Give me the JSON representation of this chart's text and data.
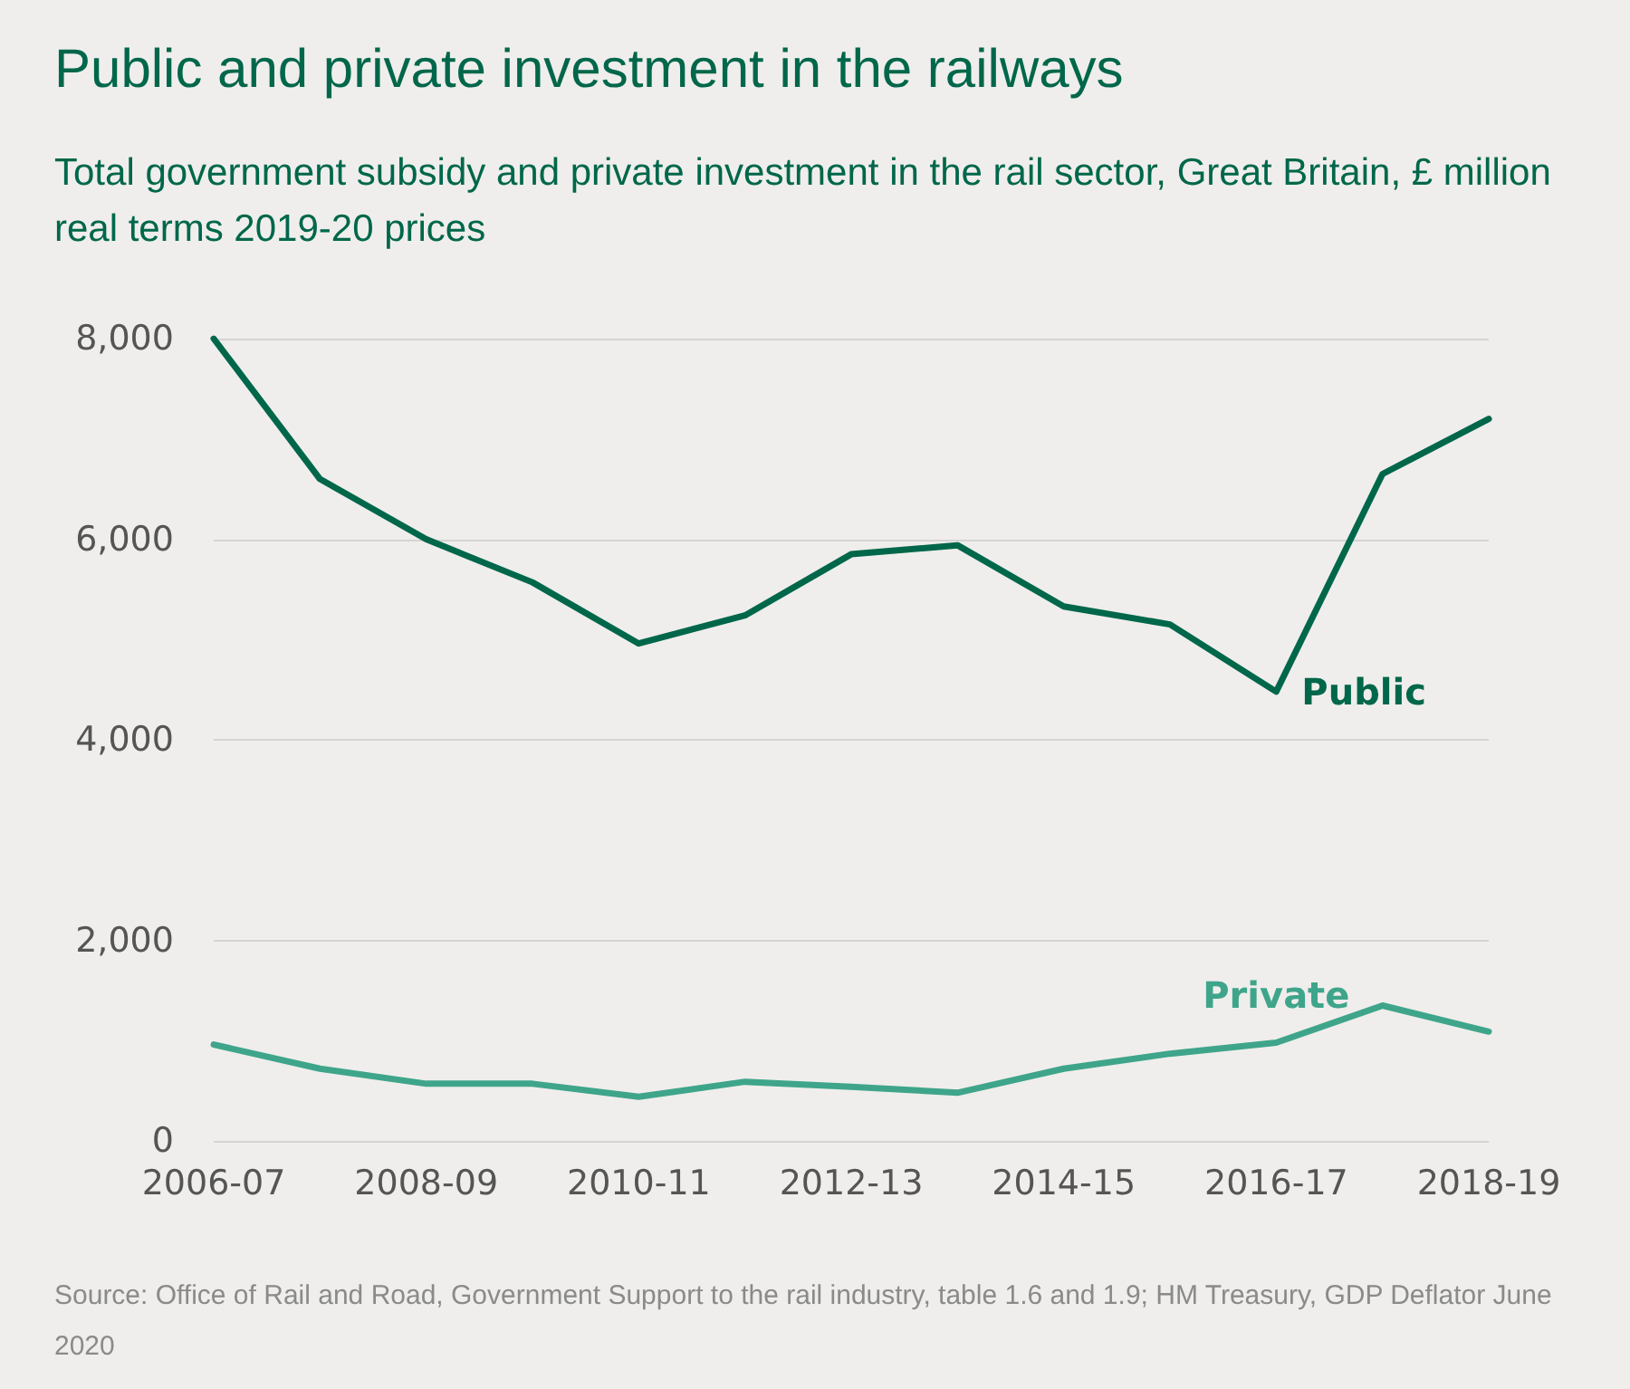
{
  "chart_data": {
    "type": "line",
    "title": "Public and private investment in the railways",
    "subtitle": "Total government subsidy and private investment in the rail sector, Great Britain, £ million real terms 2019-20 prices",
    "categories": [
      "2006-07",
      null,
      "2008-09",
      null,
      "2010-11",
      null,
      "2012-13",
      null,
      "2014-15",
      null,
      "2016-17",
      null,
      "2018-19"
    ],
    "series": [
      {
        "name": "Public",
        "color": "#00674a",
        "values": [
          8000,
          6600,
          6000,
          5570,
          4960,
          5240,
          5850,
          5940,
          5330,
          5150,
          4480,
          6650,
          7200
        ]
      },
      {
        "name": "Private",
        "color": "#3fa58a",
        "values": [
          960,
          720,
          570,
          570,
          440,
          590,
          540,
          480,
          720,
          870,
          980,
          1350,
          1090
        ]
      }
    ],
    "ylim": [
      0,
      8000
    ],
    "yticks": [
      0,
      {
        "value": 2000,
        "label": "2,000"
      },
      {
        "value": 4000,
        "label": "4,000"
      },
      {
        "value": 6000,
        "label": "6,000"
      },
      {
        "value": 8000,
        "label": "8,000"
      }
    ],
    "grid": "y",
    "marker": "none",
    "line_style": "solid",
    "annotations": [
      "Source: Office of Rail and Road, Government Support to the rail industry, table 1.6 and 1.9; HM Treasury, GDP Deflator June 2020"
    ]
  }
}
